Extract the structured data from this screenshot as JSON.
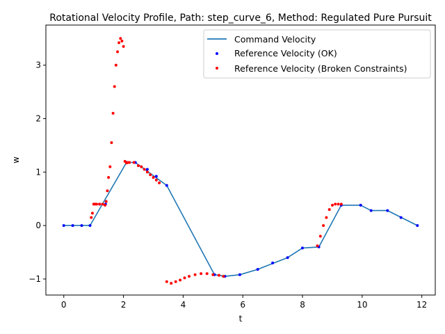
{
  "chart_data": {
    "type": "line",
    "title": "Rotational Velocity Profile, Path: step_curve_6, Method: Regulated Pure Pursuit",
    "xlabel": "t",
    "ylabel": "w",
    "xlim": [
      -0.6,
      12.45
    ],
    "ylim": [
      -1.3,
      3.75
    ],
    "xticks": [
      0,
      2,
      4,
      6,
      8,
      10,
      12
    ],
    "yticks": [
      -1,
      0,
      1,
      2,
      3
    ],
    "grid": false,
    "legend_position": "top-right",
    "legend": [
      "Command Velocity",
      "Reference Velocity (OK)",
      "Reference Velocity (Broken Constraints)"
    ],
    "series": [
      {
        "name": "Command Velocity",
        "kind": "line",
        "color": "#1f77b4",
        "x": [
          0,
          0.88,
          2.1,
          2.4,
          3.45,
          5.05,
          5.4,
          5.9,
          6.5,
          7.5,
          8.0,
          8.55,
          9.3,
          9.95,
          10.3,
          10.85,
          11.85
        ],
        "y": [
          0,
          0,
          1.18,
          1.18,
          0.75,
          -0.92,
          -0.95,
          -0.92,
          -0.82,
          -0.6,
          -0.42,
          -0.4,
          0.38,
          0.38,
          0.28,
          0.28,
          0
        ]
      },
      {
        "name": "Reference Velocity (OK)",
        "kind": "scatter",
        "color": "#0000ff",
        "x": [
          0,
          0.3,
          0.6,
          0.88,
          1.2,
          1.4,
          2.1,
          2.4,
          2.8,
          3.1,
          3.45,
          5.05,
          5.4,
          5.9,
          6.5,
          7.0,
          7.5,
          8.0,
          8.55,
          9.3,
          9.95,
          10.3,
          10.85,
          11.3,
          11.85
        ],
        "y": [
          0,
          0,
          0,
          0,
          0.4,
          0.4,
          1.18,
          1.18,
          1.05,
          0.92,
          0.75,
          -0.92,
          -0.95,
          -0.92,
          -0.82,
          -0.7,
          -0.6,
          -0.42,
          -0.4,
          0.38,
          0.38,
          0.28,
          0.28,
          0.15,
          0
        ]
      },
      {
        "name": "Reference Velocity (Broken Constraints)",
        "kind": "scatter",
        "color": "#ff0000",
        "x": [
          0.92,
          0.96,
          1.0,
          1.05,
          1.1,
          1.2,
          1.3,
          1.38,
          1.42,
          1.46,
          1.5,
          1.55,
          1.6,
          1.65,
          1.7,
          1.75,
          1.8,
          1.85,
          1.9,
          1.95,
          2.0,
          2.05,
          2.1,
          2.15,
          2.2,
          2.35,
          2.5,
          2.6,
          2.7,
          2.8,
          2.9,
          3.0,
          3.1,
          3.2,
          3.45,
          3.6,
          3.75,
          3.9,
          4.05,
          4.2,
          4.4,
          4.6,
          4.8,
          5.0,
          5.2,
          5.35,
          8.5,
          8.6,
          8.7,
          8.8,
          8.9,
          9.0,
          9.1,
          9.2,
          9.3
        ],
        "y": [
          0.15,
          0.23,
          0.4,
          0.4,
          0.4,
          0.4,
          0.4,
          0.38,
          0.45,
          0.65,
          0.9,
          1.1,
          1.55,
          2.1,
          2.6,
          3.0,
          3.25,
          3.42,
          3.5,
          3.45,
          3.35,
          1.2,
          1.17,
          1.18,
          1.18,
          1.18,
          1.12,
          1.1,
          1.05,
          1.0,
          0.95,
          0.9,
          0.85,
          0.8,
          -1.05,
          -1.08,
          -1.05,
          -1.02,
          -0.98,
          -0.95,
          -0.92,
          -0.9,
          -0.9,
          -0.92,
          -0.93,
          -0.95,
          -0.38,
          -0.2,
          0.0,
          0.15,
          0.3,
          0.38,
          0.4,
          0.4,
          0.4
        ]
      }
    ]
  }
}
